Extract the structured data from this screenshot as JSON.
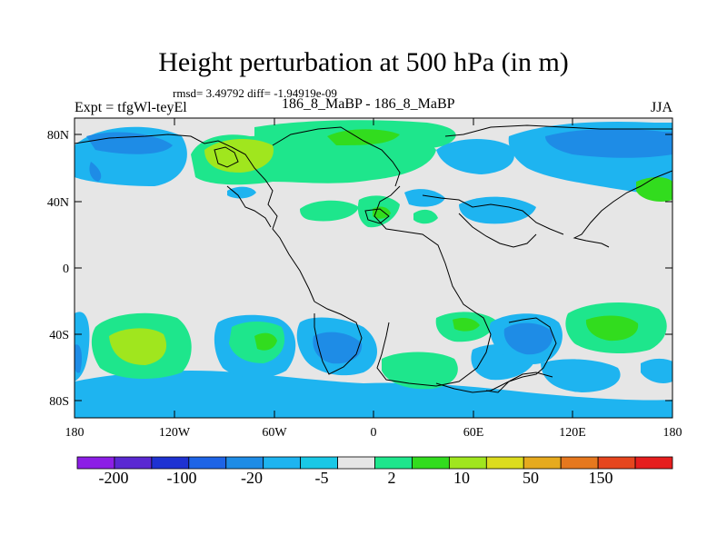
{
  "figure": {
    "title": "Height perturbation at 500 hPa (in m)",
    "stats": "rmsd= 3.49792 diff= -1.94919e-09",
    "experiment": "Expt = tfgWl-teyEl",
    "subtitle": "186_8_MaBP - 186_8_MaBP",
    "season": "JJA"
  },
  "axes": {
    "y_ticks": [
      "80N",
      "40N",
      "0",
      "40S",
      "80S"
    ],
    "x_ticks": [
      "180",
      "120W",
      "60W",
      "0",
      "60E",
      "120E",
      "180"
    ]
  },
  "colorbar": {
    "colors": [
      "#8c1ee6",
      "#5a28d2",
      "#1e32d2",
      "#1e64e6",
      "#1e8ce6",
      "#1eb4f0",
      "#19c8e6",
      "#e6e6e6",
      "#1ee68c",
      "#32dc1e",
      "#a0e61e",
      "#dcdc1e",
      "#e6aa1e",
      "#e6781e",
      "#e6461e",
      "#e61e1e"
    ],
    "labels": [
      "-200",
      "-100",
      "-20",
      "-5",
      "2",
      "10",
      "50",
      "150"
    ]
  }
}
